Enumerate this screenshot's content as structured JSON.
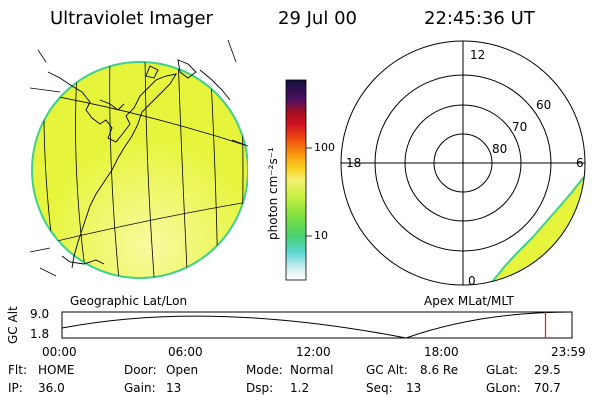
{
  "header": {
    "title": "Ultraviolet Imager",
    "date": "29 Jul 00",
    "time": "22:45:36 UT"
  },
  "colorbar": {
    "unit_label": "photon cm⁻²s⁻¹",
    "tick_100": "100",
    "tick_10": "10"
  },
  "panels": {
    "left_label": "Geographic Lat/Lon",
    "right_label": "Apex MLat/MLT"
  },
  "polar": {
    "mlt_12": "12",
    "mlt_18": "18",
    "mlt_6": "6",
    "mlt_0": "0",
    "lat_60": "60",
    "lat_70": "70",
    "lat_80": "80"
  },
  "altitude_plot": {
    "ylabel": "GC Alt",
    "y_top": "9.0",
    "y_bottom": "1.8",
    "x_ticks": [
      "00:00",
      "06:00",
      "12:00",
      "18:00",
      "23:59"
    ],
    "marker_time_fraction": 0.948
  },
  "info": {
    "flt_label": "Flt:",
    "flt_value": "HOME",
    "door_label": "Door:",
    "door_value": "Open",
    "mode_label": "Mode:",
    "mode_value": "Normal",
    "gcalt_label": "GC Alt:",
    "gcalt_value": "8.6 Re",
    "glat_label": "GLat:",
    "glat_value": "29.5",
    "ip_label": "IP:",
    "ip_value": "36.0",
    "gain_label": "Gain:",
    "gain_value": "13",
    "dsp_label": "Dsp:",
    "dsp_value": "1.2",
    "seq_label": "Seq:",
    "seq_value": "13",
    "glon_label": "GLon:",
    "glon_value": "70.7"
  },
  "colors": {
    "emission": "#e6f53c",
    "emission_edge": "#3fd08a"
  }
}
